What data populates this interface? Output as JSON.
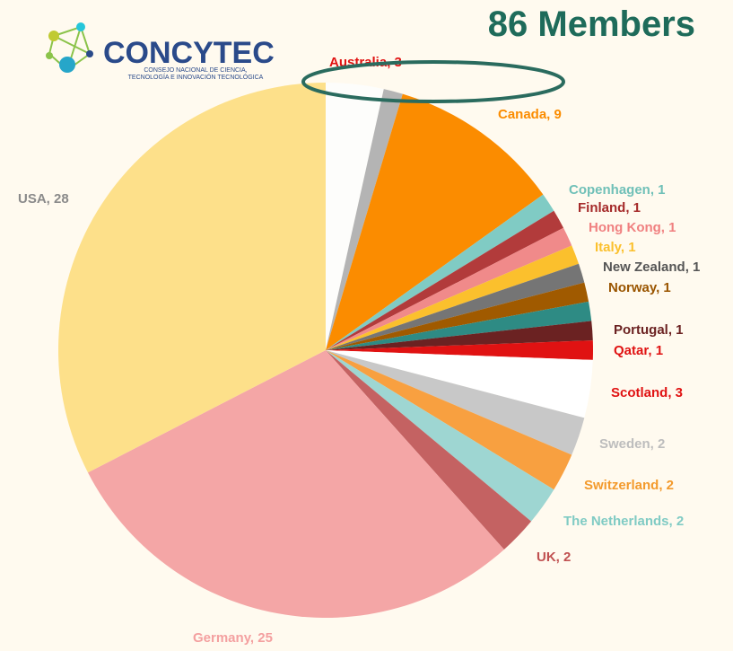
{
  "chart_data": {
    "type": "pie",
    "title": "86 Members",
    "values": [
      3,
      1,
      9,
      1,
      1,
      1,
      1,
      1,
      1,
      1,
      1,
      1,
      3,
      2,
      2,
      2,
      2,
      25,
      28
    ],
    "value_labels": [
      "Australia, 3",
      null,
      "Canada, 9",
      "Copenhagen, 1",
      "Finland, 1",
      "Hong Kong, 1",
      "Italy, 1",
      "New Zealand, 1",
      "Norway, 1",
      null,
      "Portugal, 1",
      "Qatar, 1",
      "Scotland, 3",
      "Sweden, 2",
      "Switzerland, 2",
      "The Netherlands, 2",
      "UK, 2",
      "Germany, 25",
      "USA, 28"
    ],
    "colors": [
      "#fdfdfb",
      "#b4b4b4",
      "#fb8c00",
      "#80cbc4",
      "#b23b3b",
      "#f08a8a",
      "#fbc02d",
      "#757575",
      "#a05a00",
      "#2e8b84",
      "#6b2222",
      "#e01212",
      "#ffffff",
      "#c8c8c8",
      "#f8a040",
      "#9ed6d2",
      "#c46262",
      "#f4a6a6",
      "#fde08a"
    ],
    "label_colors": [
      "#e01212",
      null,
      "#fb8c00",
      "#70c0b8",
      "#a52a2a",
      "#f08080",
      "#fbc02d",
      "#555555",
      "#9a5500",
      null,
      "#6b2222",
      "#e01212",
      "#e01212",
      "#bdbdbd",
      "#f39a2c",
      "#80cbc4",
      "#c05050",
      "#f4a0a0",
      "#8a8a8a"
    ]
  },
  "logo": {
    "name": "CONCYTEC",
    "tagline": [
      "CONSEJO NACIONAL DE CIENCIA,",
      "TECNOLOGÍA E INNOVACIÓN TECNOLÓGICA"
    ]
  }
}
